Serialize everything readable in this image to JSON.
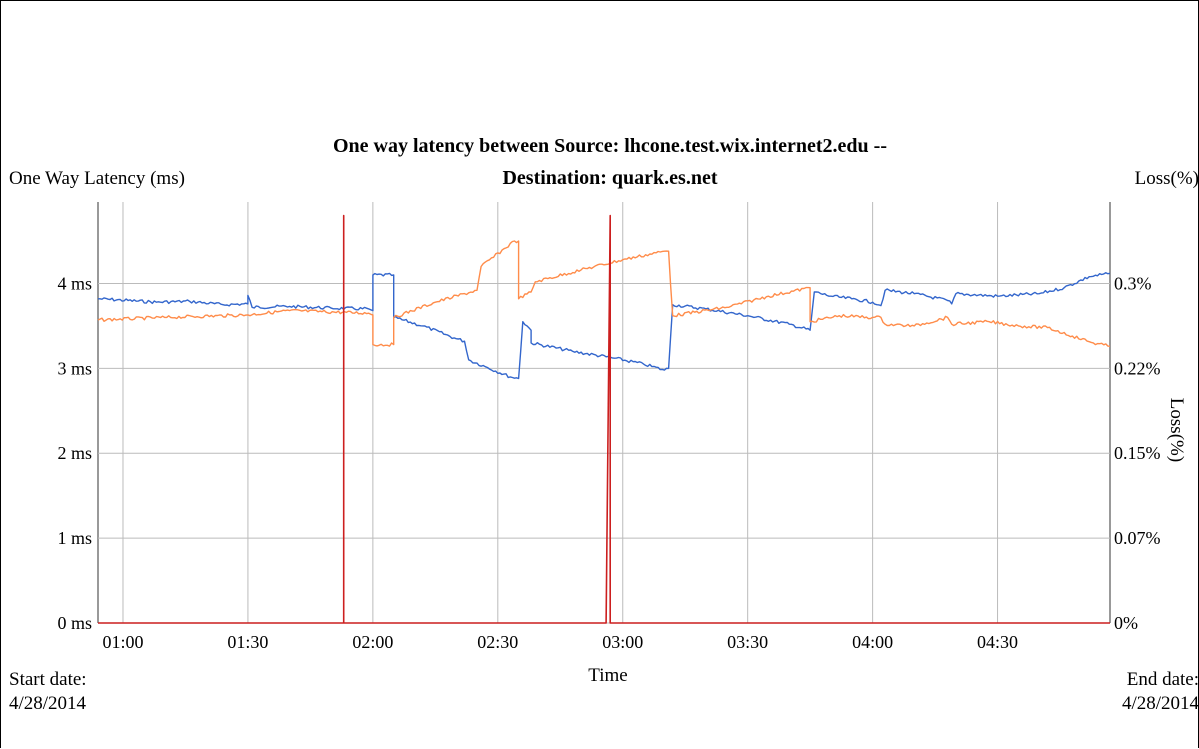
{
  "chart_data": {
    "type": "line",
    "title_line1": "One way latency between Source: lhcone.test.wix.internet2.edu --",
    "title_line2": "Destination: quark.es.net",
    "ylabel_left": "One Way Latency (ms)",
    "ylabel_right_top": "Loss(%)",
    "ylabel_right_rotated": "Loss(%)",
    "xlabel": "Time",
    "x_range": [
      "00:54",
      "04:57"
    ],
    "x_ticks": [
      "01:00",
      "01:30",
      "02:00",
      "02:30",
      "03:00",
      "03:30",
      "04:00",
      "04:30"
    ],
    "y_left_range": [
      0,
      4.96
    ],
    "y_left_ticks": [
      "0 ms",
      "1 ms",
      "2 ms",
      "3 ms",
      "4 ms"
    ],
    "y_right_range": [
      0,
      0.372
    ],
    "y_right_ticks": [
      "0%",
      "0.07%",
      "0.15%",
      "0.22%",
      "0.3%"
    ],
    "grid": true,
    "series": [
      {
        "color": "#3366cc",
        "axis": "left",
        "points": [
          [
            "00:54",
            3.82
          ],
          [
            "01:08",
            3.78
          ],
          [
            "01:16",
            3.79
          ],
          [
            "01:24",
            3.75
          ],
          [
            "01:30",
            3.76
          ],
          [
            "01:30",
            3.86
          ],
          [
            "01:31",
            3.72
          ],
          [
            "01:40",
            3.73
          ],
          [
            "01:50",
            3.71
          ],
          [
            "01:59",
            3.7
          ],
          [
            "02:00",
            3.68
          ],
          [
            "02:00",
            4.1
          ],
          [
            "02:05",
            4.1
          ],
          [
            "02:05",
            3.6
          ],
          [
            "02:12",
            3.5
          ],
          [
            "02:20",
            3.35
          ],
          [
            "02:22",
            3.32
          ],
          [
            "02:23",
            3.1
          ],
          [
            "02:27",
            3.02
          ],
          [
            "02:33",
            2.9
          ],
          [
            "02:35",
            2.88
          ],
          [
            "02:36",
            3.55
          ],
          [
            "02:38",
            3.45
          ],
          [
            "02:38",
            3.3
          ],
          [
            "02:48",
            3.2
          ],
          [
            "02:58",
            3.12
          ],
          [
            "03:05",
            3.05
          ],
          [
            "03:10",
            2.98
          ],
          [
            "03:11",
            3.0
          ],
          [
            "03:12",
            3.75
          ],
          [
            "03:20",
            3.7
          ],
          [
            "03:30",
            3.62
          ],
          [
            "03:40",
            3.52
          ],
          [
            "03:45",
            3.45
          ],
          [
            "03:46",
            3.9
          ],
          [
            "03:50",
            3.85
          ],
          [
            "03:55",
            3.82
          ],
          [
            "04:00",
            3.78
          ],
          [
            "04:02",
            3.74
          ],
          [
            "04:03",
            3.92
          ],
          [
            "04:10",
            3.88
          ],
          [
            "04:18",
            3.8
          ],
          [
            "04:19",
            3.76
          ],
          [
            "04:20",
            3.88
          ],
          [
            "04:30",
            3.85
          ],
          [
            "04:40",
            3.88
          ],
          [
            "04:46",
            3.95
          ],
          [
            "04:52",
            4.08
          ],
          [
            "04:57",
            4.12
          ]
        ]
      },
      {
        "color": "#ff8c4a",
        "axis": "left",
        "points": [
          [
            "00:54",
            3.57
          ],
          [
            "01:10",
            3.6
          ],
          [
            "01:30",
            3.63
          ],
          [
            "01:40",
            3.68
          ],
          [
            "01:59",
            3.65
          ],
          [
            "02:00",
            3.63
          ],
          [
            "02:00",
            3.28
          ],
          [
            "02:05",
            3.28
          ],
          [
            "02:05",
            3.6
          ],
          [
            "02:15",
            3.78
          ],
          [
            "02:25",
            3.92
          ],
          [
            "02:26",
            4.2
          ],
          [
            "02:34",
            4.5
          ],
          [
            "02:35",
            4.5
          ],
          [
            "02:35",
            3.82
          ],
          [
            "02:38",
            3.9
          ],
          [
            "02:39",
            4.02
          ],
          [
            "02:50",
            4.16
          ],
          [
            "03:00",
            4.28
          ],
          [
            "03:10",
            4.38
          ],
          [
            "03:11",
            4.38
          ],
          [
            "03:12",
            3.62
          ],
          [
            "03:25",
            3.72
          ],
          [
            "03:35",
            3.85
          ],
          [
            "03:45",
            3.95
          ],
          [
            "03:45",
            3.55
          ],
          [
            "03:52",
            3.62
          ],
          [
            "04:00",
            3.6
          ],
          [
            "04:02",
            3.6
          ],
          [
            "04:03",
            3.52
          ],
          [
            "04:10",
            3.5
          ],
          [
            "04:18",
            3.6
          ],
          [
            "04:19",
            3.52
          ],
          [
            "04:28",
            3.55
          ],
          [
            "04:35",
            3.5
          ],
          [
            "04:42",
            3.48
          ],
          [
            "04:48",
            3.38
          ],
          [
            "04:53",
            3.3
          ],
          [
            "04:57",
            3.26
          ]
        ]
      },
      {
        "color": "#cc1f1f",
        "axis": "right",
        "points": [
          [
            "00:54",
            0
          ],
          [
            "01:53",
            0
          ],
          [
            "01:53",
            0.36
          ],
          [
            "01:53",
            0
          ],
          [
            "02:56",
            0
          ],
          [
            "02:57",
            0.36
          ],
          [
            "02:57",
            0
          ],
          [
            "04:57",
            0
          ]
        ]
      }
    ]
  },
  "footer": {
    "start_label": "Start date:",
    "start_value": "4/28/2014",
    "end_label": "End date:",
    "end_value": "4/28/2014"
  }
}
